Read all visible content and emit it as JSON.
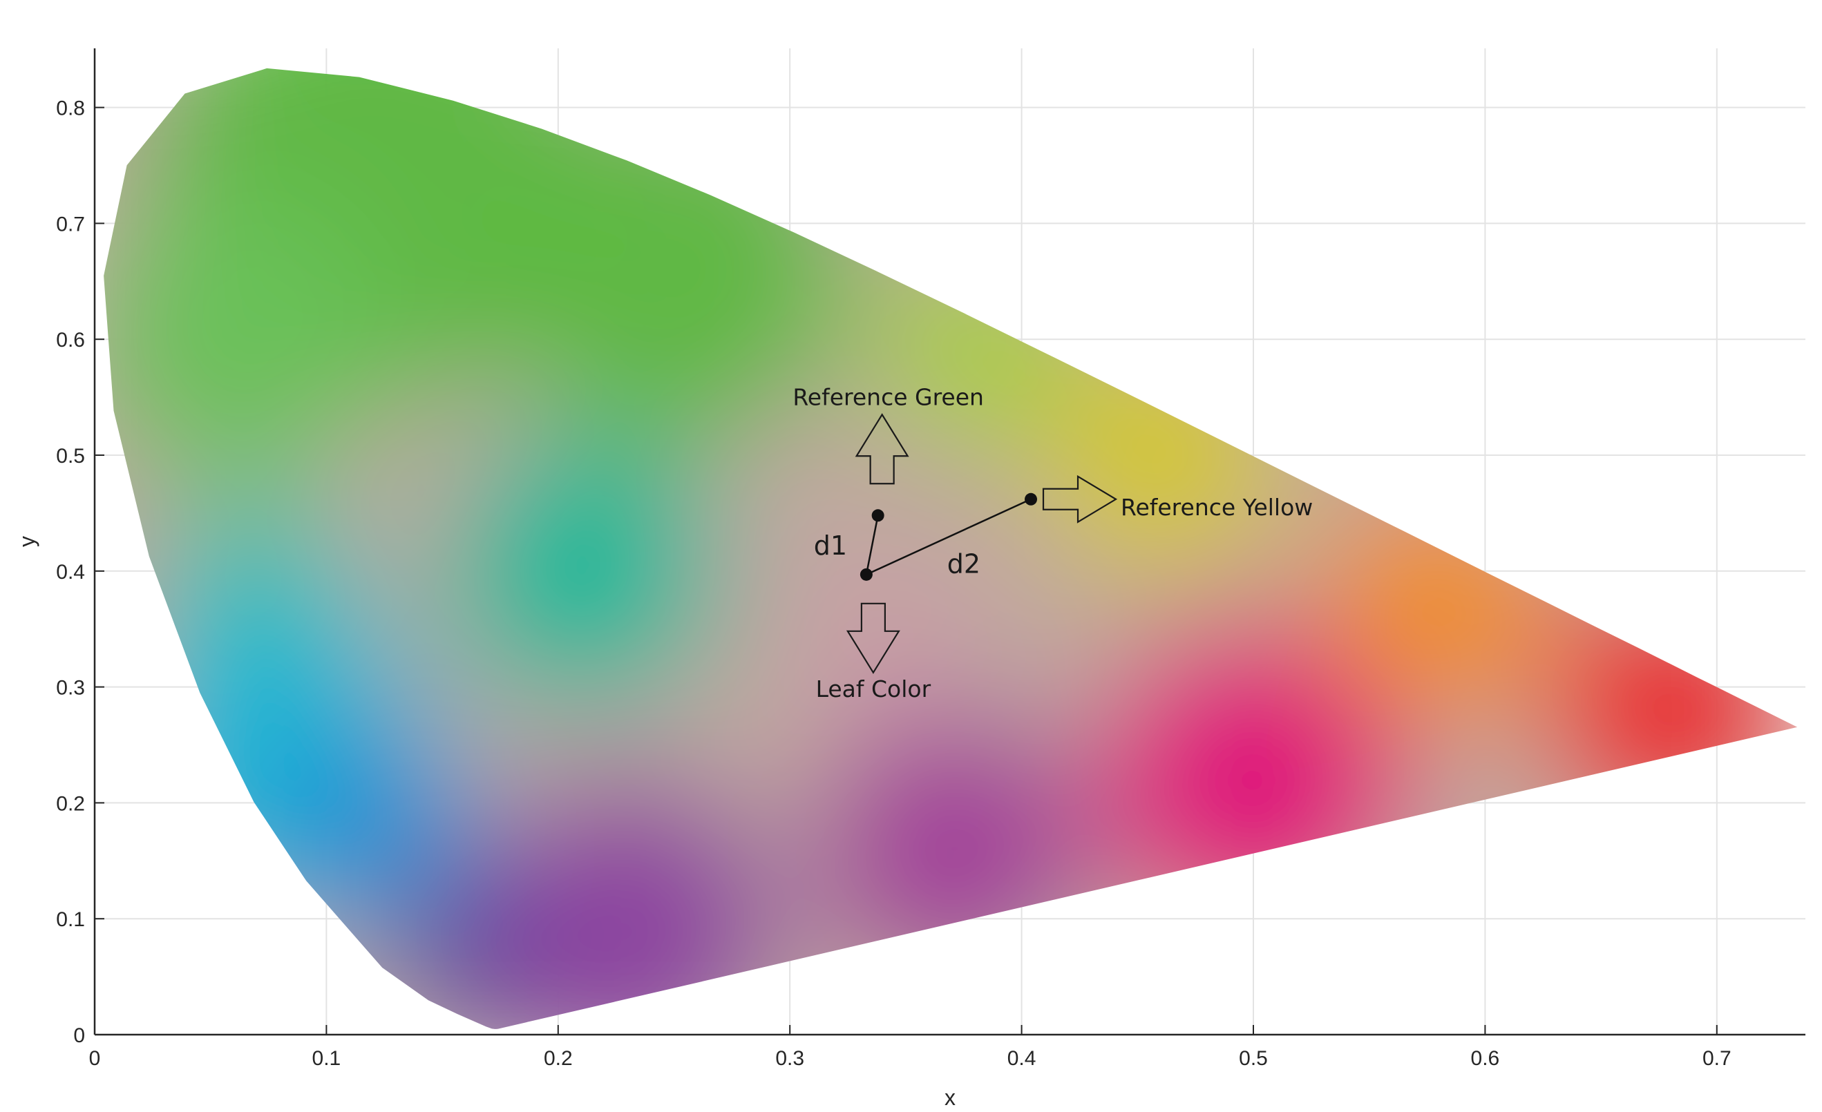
{
  "chart_data": {
    "type": "scatter",
    "title": "",
    "xlabel": "x",
    "ylabel": "y",
    "xlim": [
      0,
      0.74
    ],
    "ylim": [
      0,
      0.85
    ],
    "grid": true,
    "x_ticks": [
      "0",
      "0.1",
      "0.2",
      "0.3",
      "0.4",
      "0.5",
      "0.6",
      "0.7"
    ],
    "y_ticks": [
      "0",
      "0.1",
      "0.2",
      "0.3",
      "0.4",
      "0.5",
      "0.6",
      "0.7",
      "0.8"
    ],
    "points": [
      {
        "label": "Reference Green",
        "x": 0.338,
        "y": 0.448
      },
      {
        "label": "Leaf Color",
        "x": 0.333,
        "y": 0.397
      },
      {
        "label": "Reference Yellow",
        "x": 0.404,
        "y": 0.462
      }
    ],
    "segments": [
      {
        "label": "d1",
        "from": 1,
        "to": 0
      },
      {
        "label": "d2",
        "from": 1,
        "to": 2
      }
    ],
    "gamut_boundary": [
      [
        0.1741,
        0.005
      ],
      [
        0.1733,
        0.0048
      ],
      [
        0.1726,
        0.0048
      ],
      [
        0.1714,
        0.0051
      ],
      [
        0.1689,
        0.0069
      ],
      [
        0.1644,
        0.0109
      ],
      [
        0.1566,
        0.0177
      ],
      [
        0.144,
        0.0297
      ],
      [
        0.1241,
        0.0578
      ],
      [
        0.0913,
        0.1327
      ],
      [
        0.0687,
        0.2007
      ],
      [
        0.0454,
        0.295
      ],
      [
        0.0235,
        0.4127
      ],
      [
        0.0082,
        0.5384
      ],
      [
        0.0039,
        0.6548
      ],
      [
        0.0139,
        0.7502
      ],
      [
        0.0389,
        0.812
      ],
      [
        0.0743,
        0.8338
      ],
      [
        0.1142,
        0.8262
      ],
      [
        0.1547,
        0.8059
      ],
      [
        0.1929,
        0.7816
      ],
      [
        0.2296,
        0.7543
      ],
      [
        0.2658,
        0.7243
      ],
      [
        0.3016,
        0.6923
      ],
      [
        0.3373,
        0.6589
      ],
      [
        0.3731,
        0.6245
      ],
      [
        0.4087,
        0.5896
      ],
      [
        0.4441,
        0.5547
      ],
      [
        0.4788,
        0.5202
      ],
      [
        0.5125,
        0.4866
      ],
      [
        0.5448,
        0.4544
      ],
      [
        0.5752,
        0.4242
      ],
      [
        0.6029,
        0.3965
      ],
      [
        0.627,
        0.3725
      ],
      [
        0.6482,
        0.3514
      ],
      [
        0.6658,
        0.334
      ],
      [
        0.6801,
        0.3197
      ],
      [
        0.6915,
        0.3083
      ],
      [
        0.7006,
        0.2993
      ],
      [
        0.7079,
        0.292
      ],
      [
        0.7347,
        0.2653
      ]
    ],
    "colors": {
      "green": "#5cb840",
      "cyan": "#18b6d6",
      "blue": "#1f8fd6",
      "violet": "#3f3fa0",
      "purple": "#8a3fa0",
      "magenta": "#e0107a",
      "red": "#ec1c24",
      "orange": "#f28c1e",
      "yellow": "#dcd02a",
      "white_point": "#c0a8a0"
    }
  }
}
